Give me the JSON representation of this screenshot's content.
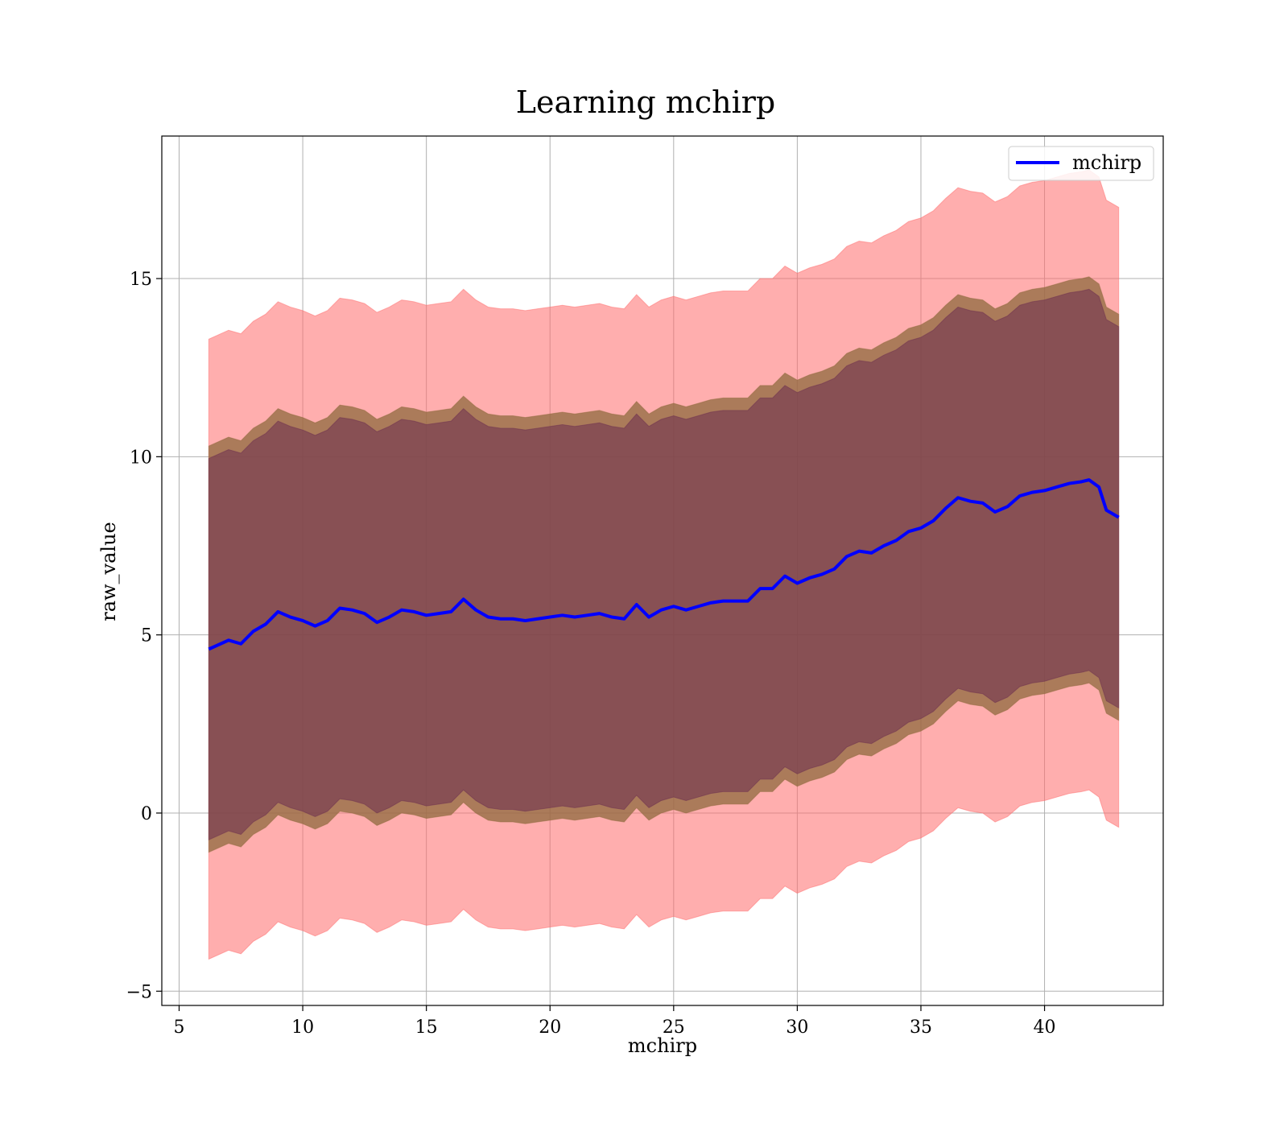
{
  "chart_data": {
    "type": "area",
    "title": "Learning mchirp",
    "xlabel": "mchirp",
    "ylabel": "raw_value",
    "xlim": [
      4.3,
      44.8
    ],
    "ylim": [
      -5.4,
      19.0
    ],
    "xticks": [
      5,
      10,
      15,
      20,
      25,
      30,
      35,
      40
    ],
    "xtick_labels": [
      "5",
      "10",
      "15",
      "20",
      "25",
      "30",
      "35",
      "40"
    ],
    "yticks": [
      -5,
      0,
      5,
      10,
      15
    ],
    "ytick_labels": [
      "−5",
      "0",
      "5",
      "10",
      "15"
    ],
    "grid": true,
    "legend": {
      "position": "top-right",
      "entries": [
        "mchirp"
      ]
    },
    "colors": {
      "line": "#0000ff",
      "band_3sigma": "#ff6b6b",
      "band_2sigma": "#8f6a3e",
      "band_1sigma": "#6b2d50",
      "grid": "#b0b0b0"
    },
    "x": [
      6.2,
      7.0,
      7.5,
      8.0,
      8.5,
      9.0,
      9.5,
      10.0,
      10.5,
      11.0,
      11.5,
      12.0,
      12.5,
      13.0,
      13.5,
      14.0,
      14.5,
      15.0,
      15.5,
      16.0,
      16.5,
      17.0,
      17.5,
      18.0,
      18.5,
      19.0,
      19.5,
      20.0,
      20.5,
      21.0,
      21.5,
      22.0,
      22.5,
      23.0,
      23.5,
      24.0,
      24.5,
      25.0,
      25.5,
      26.0,
      26.5,
      27.0,
      27.5,
      28.0,
      28.5,
      29.0,
      29.5,
      30.0,
      30.5,
      31.0,
      31.5,
      32.0,
      32.5,
      33.0,
      33.5,
      34.0,
      34.5,
      35.0,
      35.5,
      36.0,
      36.5,
      37.0,
      37.5,
      38.0,
      38.5,
      39.0,
      39.5,
      40.0,
      40.5,
      41.0,
      41.5,
      41.8,
      42.2,
      42.5,
      43.0
    ],
    "series": [
      {
        "name": "mchirp",
        "values": [
          4.6,
          4.85,
          4.75,
          5.1,
          5.3,
          5.65,
          5.5,
          5.4,
          5.25,
          5.4,
          5.75,
          5.7,
          5.6,
          5.35,
          5.5,
          5.7,
          5.65,
          5.55,
          5.6,
          5.65,
          6.0,
          5.7,
          5.5,
          5.45,
          5.45,
          5.4,
          5.45,
          5.5,
          5.55,
          5.5,
          5.55,
          5.6,
          5.5,
          5.45,
          5.85,
          5.5,
          5.7,
          5.8,
          5.7,
          5.8,
          5.9,
          5.95,
          5.95,
          5.95,
          6.3,
          6.3,
          6.65,
          6.45,
          6.6,
          6.7,
          6.85,
          7.2,
          7.35,
          7.3,
          7.5,
          7.65,
          7.9,
          8.0,
          8.2,
          8.55,
          8.85,
          8.75,
          8.7,
          8.45,
          8.6,
          8.9,
          9.0,
          9.05,
          9.15,
          9.25,
          9.3,
          9.35,
          9.15,
          8.5,
          8.3
        ]
      }
    ],
    "band_half_widths": {
      "1sigma": 5.35,
      "2sigma": 5.7,
      "3sigma": 8.7
    }
  }
}
